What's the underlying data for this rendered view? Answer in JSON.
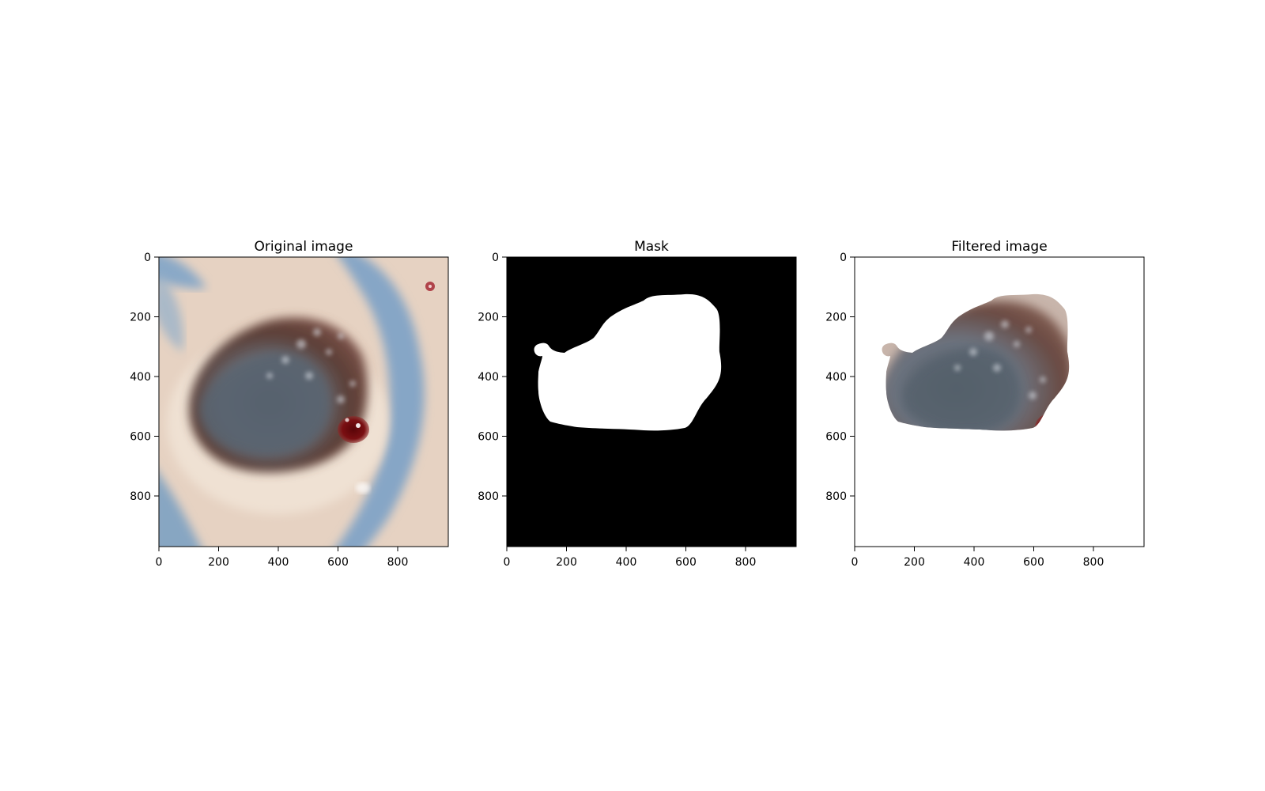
{
  "panels": [
    {
      "id": "original",
      "title": "Original image",
      "xticks": [
        "0",
        "200",
        "400",
        "600",
        "800"
      ],
      "yticks": [
        "0",
        "200",
        "400",
        "600",
        "800"
      ]
    },
    {
      "id": "mask",
      "title": "Mask",
      "xticks": [
        "0",
        "200",
        "400",
        "600",
        "800"
      ],
      "yticks": [
        "0",
        "200",
        "400",
        "600",
        "800"
      ]
    },
    {
      "id": "filtered",
      "title": "Filtered image",
      "xticks": [
        "0",
        "200",
        "400",
        "600",
        "800"
      ],
      "yticks": [
        "0",
        "200",
        "400",
        "600",
        "800"
      ]
    }
  ],
  "colors": {
    "skin": "#e8d3c3",
    "tattoo_blue": "#7fa3c4",
    "lesion_dark": "#5a3a32",
    "lesion_center": "#4c5760",
    "blood_red": "#7a0f12",
    "mask_bg": "#000000",
    "mask_fg": "#ffffff"
  }
}
